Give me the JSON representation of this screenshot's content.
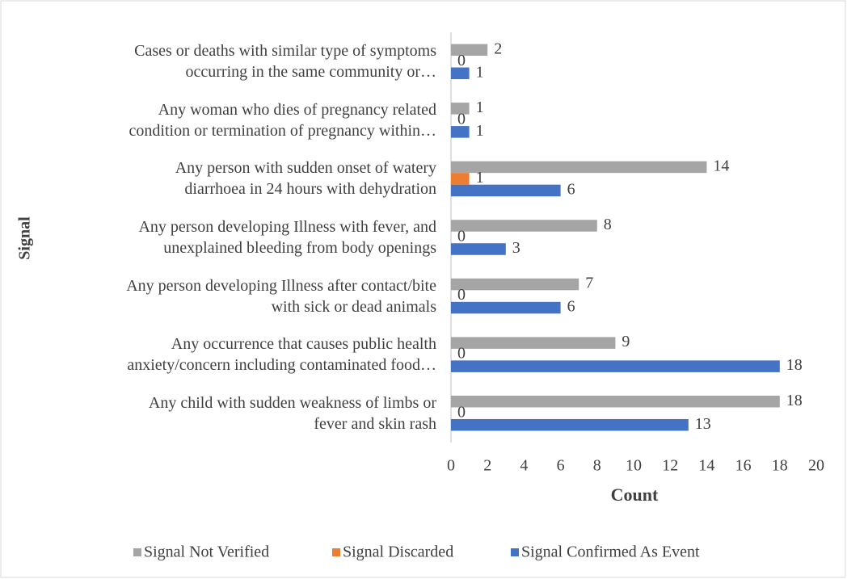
{
  "chart_data": {
    "type": "hbar",
    "categories": [
      "Cases or deaths with similar type of symptoms\noccurring in the same community or…",
      "Any woman who dies of pregnancy related\ncondition or termination of pregnancy within…",
      "Any person with sudden onset of watery\ndiarrhoea in 24 hours with dehydration",
      "Any person developing Illness with fever, and\nunexplained bleeding from body openings",
      "Any person developing Illness after contact/bite\nwith sick or dead animals",
      "Any occurrence that causes public health\nanxiety/concern including contaminated food…",
      "Any child with sudden weakness of limbs or\nfever and skin rash"
    ],
    "series": [
      {
        "name": "Signal Not Verified",
        "color": "#a5a5a5",
        "values": [
          2,
          1,
          14,
          8,
          7,
          9,
          18
        ]
      },
      {
        "name": "Signal Discarded",
        "color": "#ed7d31",
        "values": [
          0,
          0,
          1,
          0,
          0,
          0,
          0
        ]
      },
      {
        "name": "Signal Confirmed As Event",
        "color": "#4472c4",
        "values": [
          1,
          1,
          6,
          3,
          6,
          18,
          13
        ]
      }
    ],
    "x_label": "Count",
    "y_label": "Signal",
    "xlim": [
      0,
      20
    ],
    "xticks": [
      0,
      2,
      4,
      6,
      8,
      10,
      12,
      14,
      16,
      18,
      20
    ],
    "grid": false,
    "legend": "bottom"
  }
}
